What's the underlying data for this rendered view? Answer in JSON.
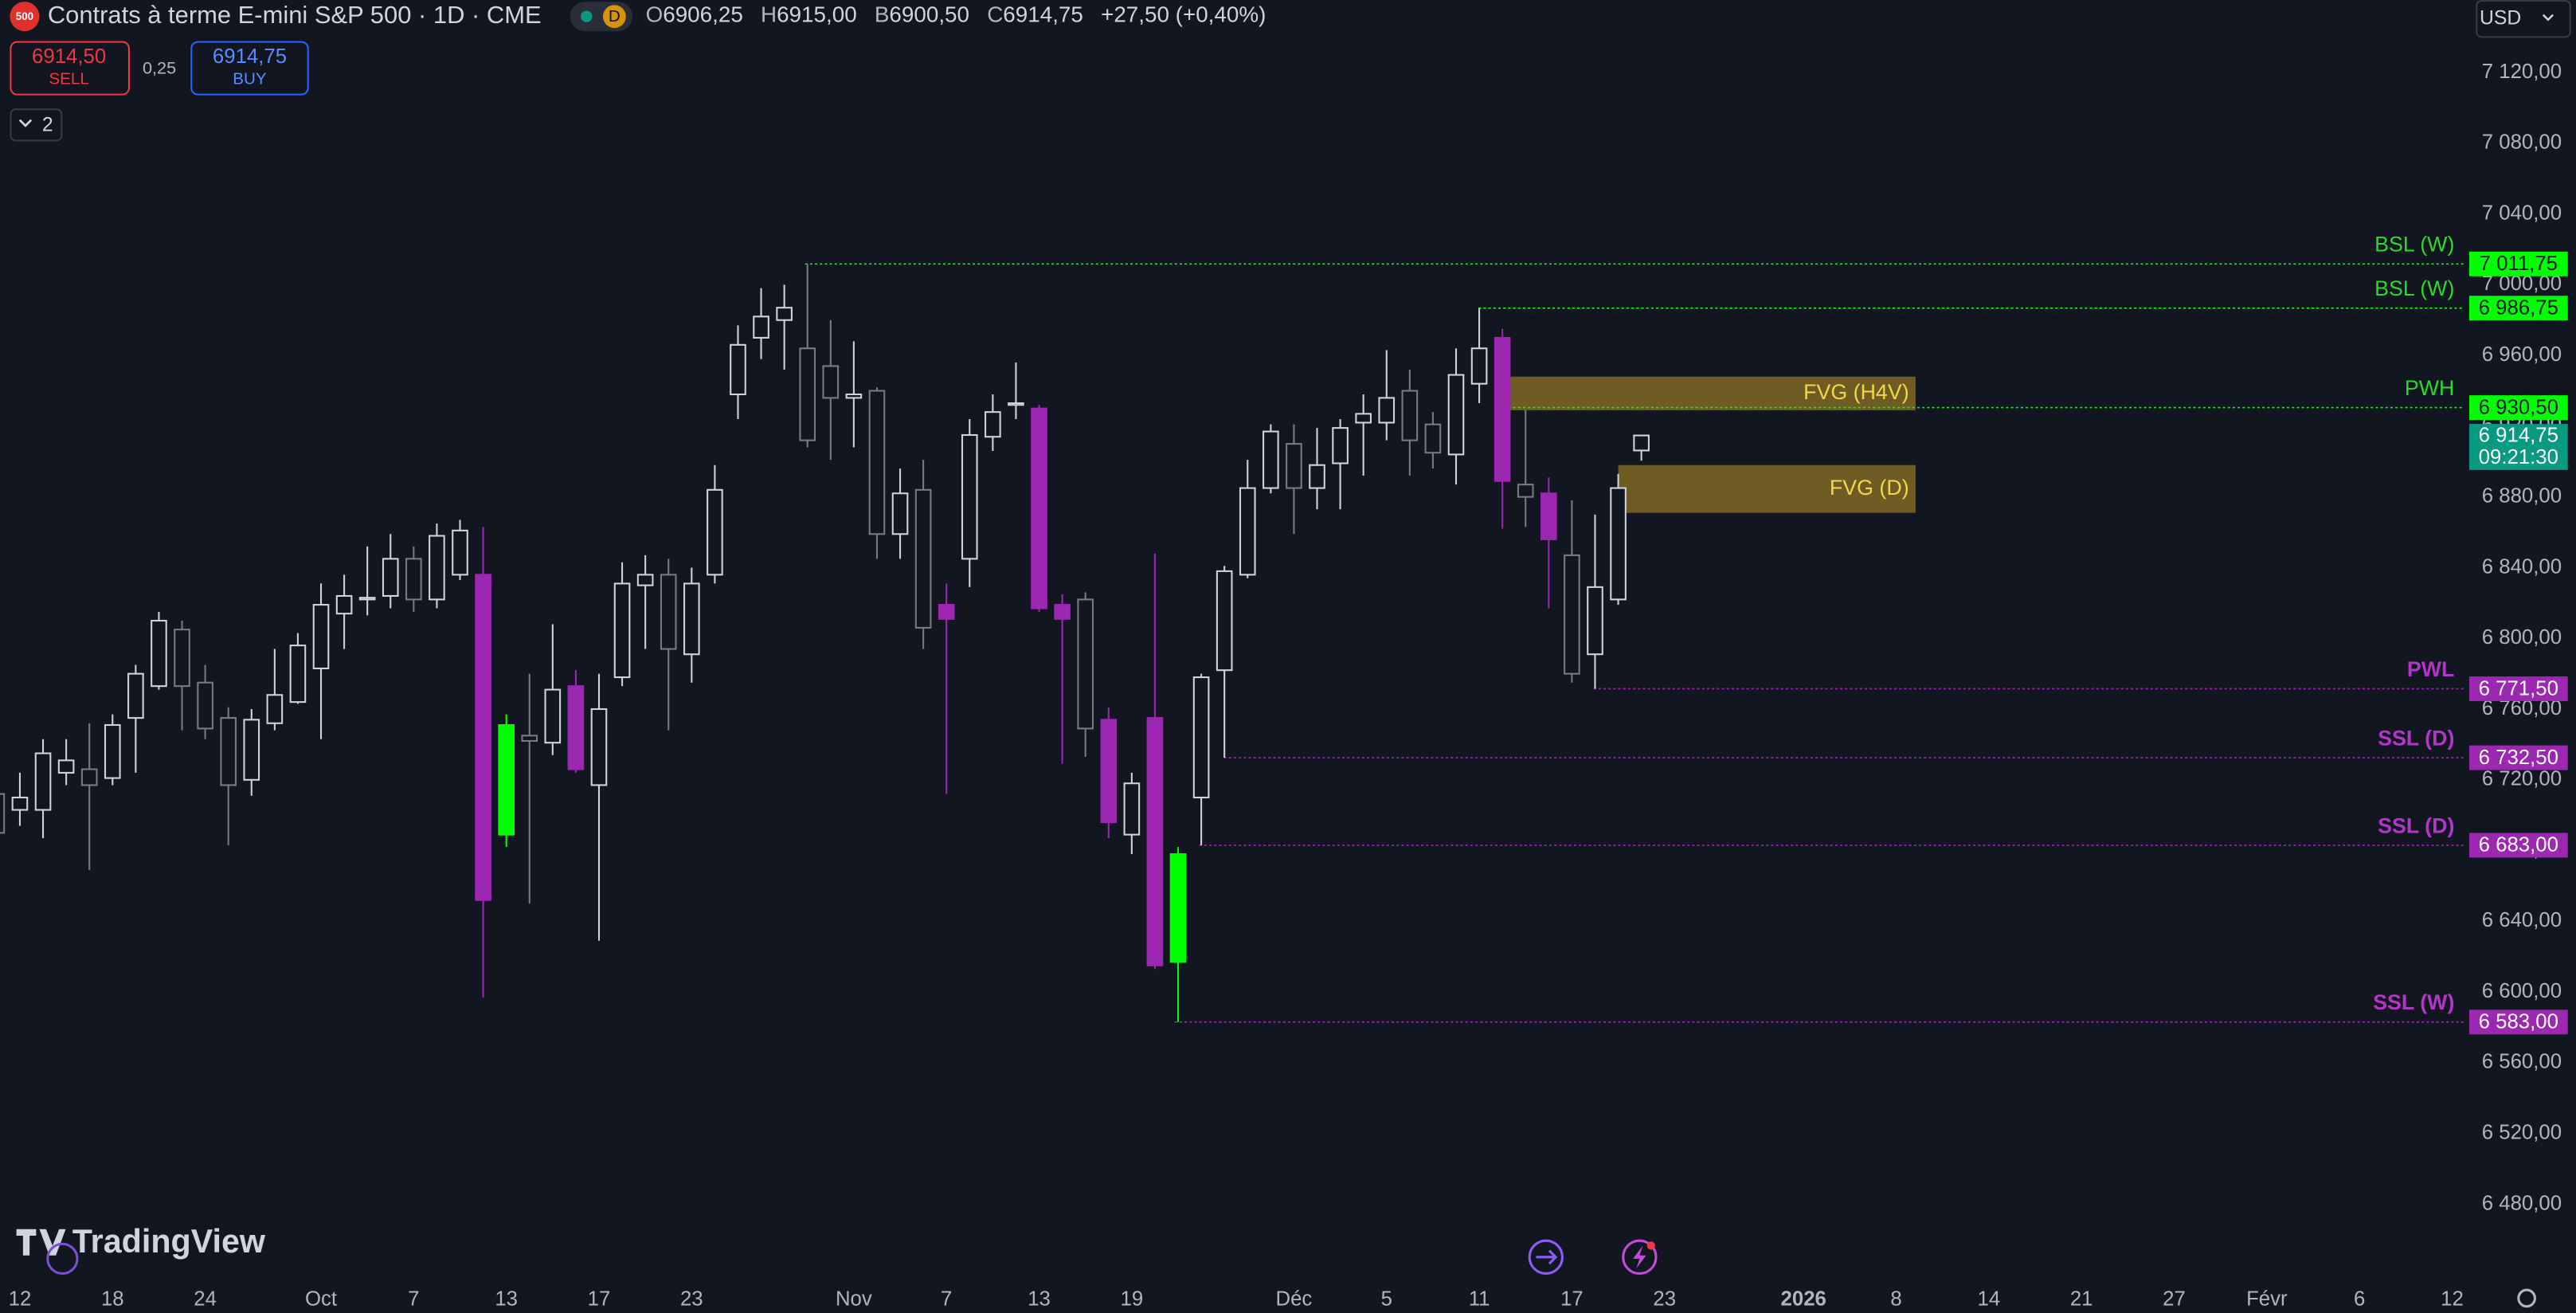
{
  "header": {
    "symbol_badge": "500",
    "title": "Contrats à terme E-mini S&P 500 · 1D · CME",
    "interval_badge": "D",
    "ohlc": [
      {
        "key": "O",
        "value": "6906,25"
      },
      {
        "key": "H",
        "value": "6915,00"
      },
      {
        "key": "B",
        "value": "6900,50"
      },
      {
        "key": "C",
        "value": "6914,75"
      }
    ],
    "change": "+27,50 (+0,40%)",
    "sell": {
      "price": "6914,50",
      "label": "SELL"
    },
    "spread": "0,25",
    "buy": {
      "price": "6914,75",
      "label": "BUY"
    },
    "indicators_count": "2",
    "currency": "USD",
    "brand": "TradingView"
  },
  "chart_data": {
    "type": "candlestick",
    "categories": [
      null,
      "12",
      null,
      null,
      null,
      "18",
      null,
      null,
      null,
      "24",
      null,
      null,
      null,
      null,
      "Oct",
      null,
      null,
      null,
      "7",
      null,
      null,
      null,
      "13",
      null,
      null,
      null,
      "17",
      null,
      null,
      null,
      "23",
      null,
      null,
      null,
      null,
      null,
      null,
      "Nov",
      null,
      null,
      null,
      "7",
      null,
      null,
      null,
      "13",
      null,
      null,
      null,
      "19",
      null,
      null,
      null,
      null,
      null,
      null,
      "Déc",
      null,
      null,
      null,
      "5",
      null,
      null,
      null,
      "11",
      null,
      null,
      null,
      "17",
      null,
      null,
      null,
      "23",
      null,
      null,
      null,
      null,
      null,
      "2026",
      null,
      null,
      null,
      "8",
      null,
      null,
      null,
      "14",
      null,
      null,
      null,
      "21",
      null,
      null,
      null,
      "27",
      null,
      null,
      null,
      "Févr",
      null,
      null,
      null,
      "6",
      null,
      null,
      null,
      "12"
    ],
    "open": [
      6712,
      6703,
      6703,
      6724,
      6726,
      6721,
      6755,
      6773,
      6805,
      6775,
      6755,
      6720,
      6752,
      6764,
      6783,
      6814,
      6822,
      6824,
      6845,
      6822,
      6836,
      6836,
      6689,
      6745,
      6741,
      6773,
      6717,
      6778,
      6830,
      6836,
      6791,
      6836,
      6938,
      6970,
      6980,
      6964,
      6954,
      6936,
      6940,
      6859,
      6884,
      6819,
      6845,
      6914,
      6932,
      6930,
      6819,
      6822,
      6754,
      6689,
      6755,
      6617,
      6710,
      6782,
      6836,
      6885,
      6910,
      6885,
      6899,
      6922,
      6922,
      6940,
      6921,
      6904,
      6944,
      6970,
      6887,
      6882,
      6847,
      6791,
      6822,
      6906.25,
      null,
      null,
      null,
      null,
      null,
      null,
      null,
      null,
      null,
      null,
      null,
      null,
      null,
      null,
      null,
      null,
      null,
      null,
      null,
      null,
      null,
      null,
      null,
      null,
      null,
      null,
      null,
      null,
      null,
      null,
      null,
      null,
      null,
      null,
      null
    ],
    "high": [
      6730,
      6724,
      6743,
      6743,
      6752,
      6757,
      6785,
      6815,
      6810,
      6785,
      6761,
      6760,
      6794,
      6803,
      6831,
      6836,
      6852,
      6859,
      6852,
      6865,
      6867,
      6863,
      6757,
      6780,
      6808,
      6782,
      6780,
      6843,
      6847,
      6845,
      6840,
      6898,
      6977,
      6998,
      7000,
      7011.75,
      6980,
      6968,
      6942,
      6896,
      6901,
      6831,
      6924,
      6938,
      6956,
      6932,
      6825,
      6826,
      6761,
      6724,
      6848,
      6682,
      6780,
      6841,
      6901,
      6921,
      6921,
      6919,
      6924,
      6938,
      6963,
      6952,
      6928,
      6964,
      6986.75,
      6975,
      6929,
      6891,
      6878,
      6870,
      6893,
      6915,
      null,
      null,
      null,
      null,
      null,
      null,
      null,
      null,
      null,
      null,
      null,
      null,
      null,
      null,
      null,
      null,
      null,
      null,
      null,
      null,
      null,
      null,
      null,
      null,
      null,
      null,
      null,
      null,
      null,
      null,
      null,
      null,
      null,
      null,
      null
    ],
    "low": [
      6652,
      6694,
      6687,
      6717,
      6669,
      6717,
      6724,
      6771,
      6748,
      6743,
      6683,
      6711,
      6748,
      6763,
      6743,
      6794,
      6813,
      6817,
      6815,
      6817,
      6833,
      6597,
      6682,
      6650,
      6734,
      6724,
      6629,
      6773,
      6794,
      6748,
      6775,
      6831,
      6924,
      6958,
      6952,
      6908,
      6901,
      6908,
      6845,
      6845,
      6794,
      6712,
      6829,
      6906,
      6924,
      6815,
      6729,
      6733,
      6687,
      6678,
      6613,
      6583,
      6683,
      6732.5,
      6834,
      6882,
      6859,
      6873,
      6873,
      6892,
      6912,
      6892,
      6896,
      6887,
      6933,
      6862,
      6863,
      6817,
      6775,
      6771.5,
      6819,
      6900.5,
      null,
      null,
      null,
      null,
      null,
      null,
      null,
      null,
      null,
      null,
      null,
      null,
      null,
      null,
      null,
      null,
      null,
      null,
      null,
      null,
      null,
      null,
      null,
      null,
      null,
      null,
      null,
      null,
      null,
      null,
      null,
      null,
      null,
      null,
      null
    ],
    "close": [
      6690,
      6710,
      6735,
      6731,
      6717,
      6751,
      6780,
      6810,
      6773,
      6749,
      6717,
      6754,
      6768,
      6796,
      6819,
      6824,
      6823,
      6845,
      6822,
      6858,
      6861,
      6652,
      6751,
      6742,
      6771,
      6726,
      6760,
      6831,
      6836,
      6794,
      6831,
      6884,
      6966,
      6982,
      6987,
      6912,
      6936,
      6938,
      6859,
      6882,
      6806,
      6811,
      6915,
      6928,
      6933,
      6817,
      6811,
      6749,
      6696,
      6718,
      6615,
      6678,
      6778,
      6838,
      6885,
      6917,
      6885,
      6898,
      6919,
      6927,
      6936,
      6912,
      6905,
      6949,
      6964,
      6889,
      6880,
      6856,
      6780,
      6829,
      6885,
      6914.75,
      null,
      null,
      null,
      null,
      null,
      null,
      null,
      null,
      null,
      null,
      null,
      null,
      null,
      null,
      null,
      null,
      null,
      null,
      null,
      null,
      null,
      null,
      null,
      null,
      null,
      null,
      null,
      null,
      null,
      null,
      null,
      null,
      null,
      null,
      null
    ],
    "up_color": "#d1d4dc",
    "down_color": "#787b86",
    "candle_colors": {
      "21": "#9c27b0",
      "22": "#00ff00",
      "25": "#9c27b0",
      "41": "#9c27b0",
      "45": "#9c27b0",
      "46": "#9c27b0",
      "48": "#9c27b0",
      "50": "#9c27b0",
      "51": "#00ff00",
      "65": "#9c27b0",
      "67": "#9c27b0"
    },
    "ylim": [
      6438,
      7161
    ],
    "yticks": [
      {
        "value": 6480,
        "label": "6 480,00"
      },
      {
        "value": 6520,
        "label": "6 520,00"
      },
      {
        "value": 6560,
        "label": "6 560,00"
      },
      {
        "value": 6600,
        "label": "6 600,00"
      },
      {
        "value": 6640,
        "label": "6 640,00"
      },
      {
        "value": 6680,
        "label": "6 680,00"
      },
      {
        "value": 6720,
        "label": "6 720,00"
      },
      {
        "value": 6760,
        "label": "6 760,00"
      },
      {
        "value": 6800,
        "label": "6 800,00"
      },
      {
        "value": 6840,
        "label": "6 840,00"
      },
      {
        "value": 6880,
        "label": "6 880,00"
      },
      {
        "value": 6920,
        "label": "6 920,00"
      },
      {
        "value": 6960,
        "label": "6 960,00"
      },
      {
        "value": 7000,
        "label": "7 000,00"
      },
      {
        "value": 7040,
        "label": "7 040,00"
      },
      {
        "value": 7080,
        "label": "7 080,00"
      },
      {
        "value": 7120,
        "label": "7 120,00"
      }
    ],
    "grid": false,
    "levels": [
      {
        "name": "BSL (W)",
        "value": 7011.75,
        "value_label": "7 011,75",
        "color": "#00ff00"
      },
      {
        "name": "BSL (W)",
        "value": 6986.75,
        "value_label": "6 986,75",
        "color": "#00ff00"
      },
      {
        "name": "PWH",
        "value": 6930.5,
        "value_label": "6 930,50",
        "color": "#00ff00"
      },
      {
        "name": "PWL",
        "value": 6771.5,
        "value_label": "6 771,50",
        "color": "#9c27b0"
      },
      {
        "name": "SSL (D)",
        "value": 6732.5,
        "value_label": "6 732,50",
        "color": "#9c27b0"
      },
      {
        "name": "SSL (D)",
        "value": 6683,
        "value_label": "6 683,00",
        "color": "#9c27b0"
      },
      {
        "name": "SSL (W)",
        "value": 6583,
        "value_label": "6 583,00",
        "color": "#9c27b0"
      }
    ],
    "zones": [
      {
        "name": "FVG (H4V)",
        "top": 6948,
        "bottom": 6929
      },
      {
        "name": "FVG (D)",
        "top": 6898,
        "bottom": 6871
      }
    ],
    "last_price": {
      "value": 6914.75,
      "value_label": "6 914,75",
      "countdown": "09:21:30",
      "color": "#089981"
    }
  }
}
